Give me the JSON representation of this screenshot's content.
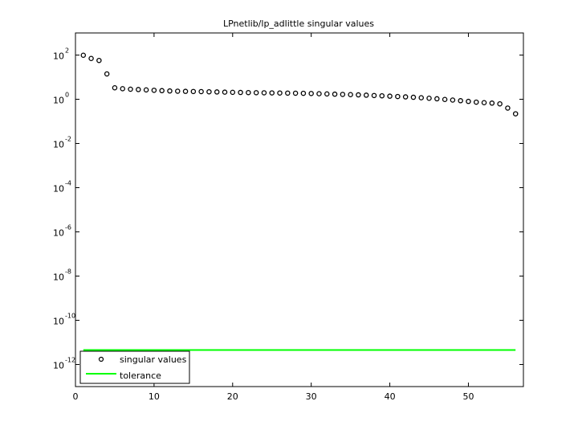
{
  "chart_data": {
    "type": "scatter",
    "title": "LPnetlib/lp_adlittle singular values",
    "xlabel": "",
    "ylabel": "",
    "xlim": [
      0,
      57
    ],
    "ylim_log10": [
      -13,
      3
    ],
    "yscale": "log",
    "grid": false,
    "legend_position": "bottom-left",
    "x_ticks": [
      {
        "value": 0,
        "label": "0"
      },
      {
        "value": 10,
        "label": "10"
      },
      {
        "value": 20,
        "label": "20"
      },
      {
        "value": 30,
        "label": "30"
      },
      {
        "value": 40,
        "label": "40"
      },
      {
        "value": 50,
        "label": "50"
      }
    ],
    "y_ticks": [
      {
        "exp": 2,
        "base": "10",
        "power": "2"
      },
      {
        "exp": 0,
        "base": "10",
        "power": "0"
      },
      {
        "exp": -2,
        "base": "10",
        "power": "-2"
      },
      {
        "exp": -4,
        "base": "10",
        "power": "-4"
      },
      {
        "exp": -6,
        "base": "10",
        "power": "-6"
      },
      {
        "exp": -8,
        "base": "10",
        "power": "-8"
      },
      {
        "exp": -10,
        "base": "10",
        "power": "-10"
      },
      {
        "exp": -12,
        "base": "10",
        "power": "-12"
      }
    ],
    "series": [
      {
        "name": "singular values",
        "marker": "circle",
        "color": "#000000",
        "x": [
          1,
          2,
          3,
          4,
          5,
          6,
          7,
          8,
          9,
          10,
          11,
          12,
          13,
          14,
          15,
          16,
          17,
          18,
          19,
          20,
          21,
          22,
          23,
          24,
          25,
          26,
          27,
          28,
          29,
          30,
          31,
          32,
          33,
          34,
          35,
          36,
          37,
          38,
          39,
          40,
          41,
          42,
          43,
          44,
          45,
          46,
          47,
          48,
          49,
          50,
          51,
          52,
          53,
          54,
          55,
          56
        ],
        "y": [
          98,
          70,
          57,
          14,
          3.3,
          3.0,
          2.85,
          2.75,
          2.65,
          2.55,
          2.45,
          2.38,
          2.32,
          2.28,
          2.25,
          2.22,
          2.18,
          2.14,
          2.1,
          2.06,
          2.03,
          2.0,
          1.98,
          1.96,
          1.94,
          1.92,
          1.9,
          1.88,
          1.86,
          1.82,
          1.78,
          1.74,
          1.7,
          1.66,
          1.62,
          1.58,
          1.53,
          1.48,
          1.43,
          1.38,
          1.33,
          1.28,
          1.23,
          1.17,
          1.11,
          1.05,
          0.98,
          0.92,
          0.86,
          0.8,
          0.74,
          0.7,
          0.67,
          0.62,
          0.4,
          0.22
        ]
      },
      {
        "name": "tolerance",
        "marker": "line",
        "color": "#00ff00",
        "x": [
          1,
          56
        ],
        "y": [
          4.5e-12,
          4.5e-12
        ]
      }
    ]
  }
}
